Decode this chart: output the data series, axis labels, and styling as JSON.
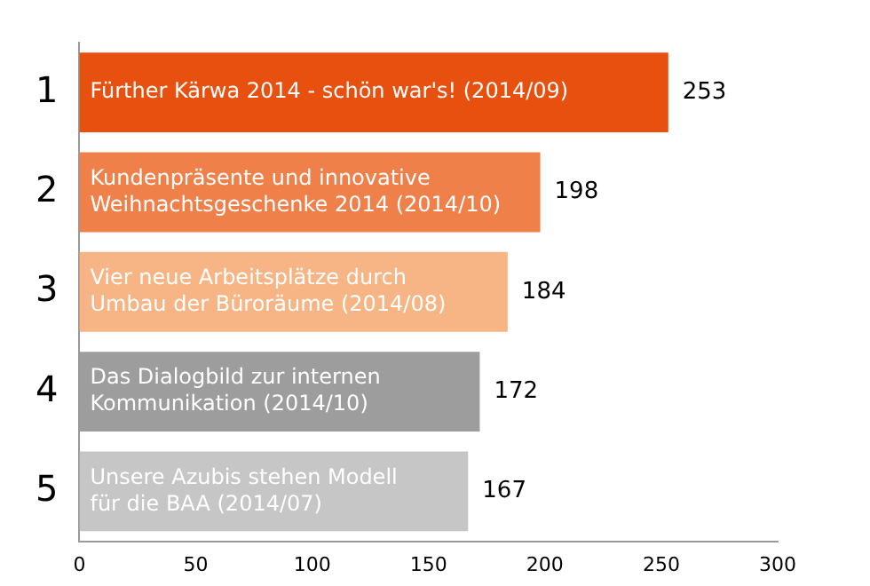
{
  "chart_data": {
    "type": "bar",
    "orientation": "horizontal",
    "categories": [
      "1",
      "2",
      "3",
      "4",
      "5"
    ],
    "values": [
      253,
      198,
      184,
      172,
      167
    ],
    "colors": [
      "#e8500f",
      "#f0804a",
      "#f7b585",
      "#9d9d9d",
      "#c6c6c6"
    ],
    "xlim": [
      0,
      300
    ],
    "xticks": [
      0,
      50,
      100,
      150,
      200,
      250,
      300
    ],
    "grid": false,
    "legend": false,
    "data_labels": true,
    "annotations": [
      {
        "text": "Fürther Kärwa 2014 - schön war's! (2014/09)",
        "y": "1"
      },
      {
        "text": "Kundenpräsente und innovative\nWeihnachtsgeschenke 2014 (2014/10)",
        "y": "2"
      },
      {
        "text": "Vier neue Arbeitsplätze durch\nUmbau der Büroräume (2014/08)",
        "y": "3"
      },
      {
        "text": "Das Dialogbild zur internen\nKommunikation (2014/10)",
        "y": "4"
      },
      {
        "text": "Unsere Azubis stehen Modell\nfür die BAA (2014/07)",
        "y": "5"
      }
    ]
  }
}
